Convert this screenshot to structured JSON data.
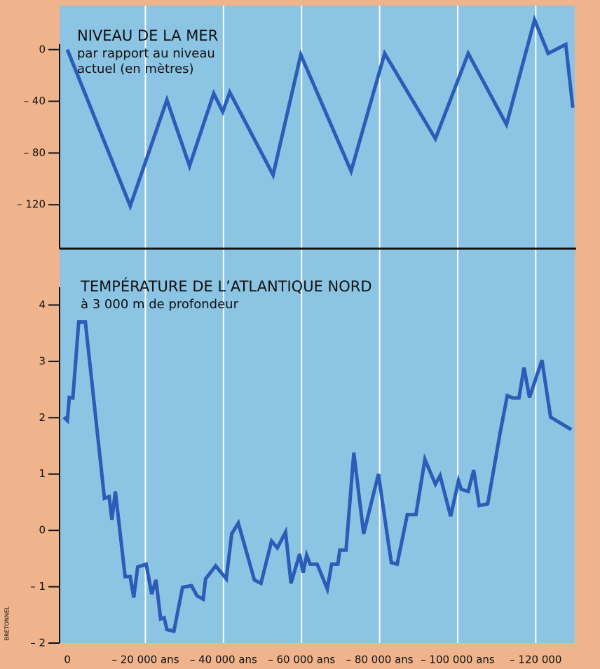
{
  "credit": "BRETONNEL",
  "chart_data": [
    {
      "type": "line",
      "title": "NIVEAU DE LA MER",
      "subtitle": [
        "par rapport au niveau",
        "actuel (en mètres)"
      ],
      "color": "#2b5cb8",
      "x": [
        0,
        -16100,
        -25500,
        -31300,
        -37500,
        -39800,
        -41600,
        -52700,
        -59800,
        -72700,
        -81300,
        -94300,
        -102700,
        -112500,
        -119700,
        -123200,
        -127700,
        -129500
      ],
      "values": [
        0,
        -121,
        -39,
        -90,
        -34,
        -48,
        -33,
        -97,
        -4,
        -94,
        -3,
        -69,
        -3,
        -58,
        23,
        -3,
        4,
        -45
      ],
      "xlim": [
        2000,
        -130000
      ],
      "ylim": [
        -154,
        34
      ],
      "yticks": [
        0,
        {
          "value": -40,
          "label": "– 40"
        },
        {
          "value": -80,
          "label": "– 80"
        },
        {
          "value": -120,
          "label": "– 120"
        }
      ]
    },
    {
      "type": "line",
      "title": "TEMPÉRATURE DE L’ATLANTIQUE NORD",
      "subtitle": [
        "à 3 000 m de profondeur"
      ],
      "color": "#2b5cb8",
      "x": [
        900,
        0,
        -500,
        -1400,
        -2900,
        -4600,
        -9500,
        -10700,
        -11400,
        -12300,
        -14800,
        -16100,
        -17000,
        -18000,
        -20200,
        -21600,
        -22700,
        -23900,
        -24800,
        -25500,
        -27300,
        -29500,
        -31800,
        -33200,
        -34800,
        -35400,
        -38000,
        -40700,
        -42100,
        -43800,
        -47900,
        -49600,
        -52300,
        -53800,
        -55900,
        -57300,
        -59500,
        -60400,
        -61300,
        -62200,
        -64000,
        -66600,
        -67700,
        -69300,
        -69800,
        -71400,
        -73400,
        -75900,
        -79700,
        -82300,
        -83000,
        -84500,
        -87100,
        -89300,
        -91600,
        -94300,
        -95500,
        -98200,
        -100200,
        -100900,
        -102700,
        -104100,
        -105500,
        -107700,
        -110900,
        -112700,
        -114100,
        -115700,
        -117000,
        -118400,
        -121600,
        -123800,
        -129100
      ],
      "values": [
        2.01,
        1.95,
        2.36,
        2.35,
        3.7,
        3.7,
        0.57,
        0.6,
        0.19,
        0.69,
        -0.82,
        -0.82,
        -1.19,
        -0.65,
        -0.6,
        -1.13,
        -0.88,
        -1.57,
        -1.55,
        -1.76,
        -1.79,
        -1.01,
        -0.98,
        -1.16,
        -1.22,
        -0.86,
        -0.63,
        -0.86,
        -0.06,
        0.13,
        -0.88,
        -0.94,
        -0.19,
        -0.31,
        -0.03,
        -0.94,
        -0.42,
        -0.75,
        -0.44,
        -0.6,
        -0.6,
        -1.04,
        -0.6,
        -0.6,
        -0.35,
        -0.35,
        1.38,
        -0.06,
        1.0,
        -0.25,
        -0.57,
        -0.6,
        0.28,
        0.28,
        1.26,
        0.82,
        0.97,
        0.25,
        0.88,
        0.73,
        0.69,
        1.07,
        0.44,
        0.47,
        1.74,
        2.39,
        2.35,
        2.35,
        2.89,
        2.36,
        3.02,
        2.01,
        1.79
      ],
      "xlim": [
        2000,
        -130000
      ],
      "ylim": [
        -2,
        5
      ],
      "xticks": [
        0,
        {
          "value": -20000,
          "label": "– 20 000 ans"
        },
        {
          "value": -40000,
          "label": "– 40 000 ans"
        },
        {
          "value": -60000,
          "label": "– 60 000 ans"
        },
        {
          "value": -80000,
          "label": "– 80 000 ans"
        },
        {
          "value": -100000,
          "label": "– 100 000 ans"
        },
        {
          "value": -120000,
          "label": "– 120 000"
        }
      ],
      "yticks": [
        4,
        3,
        2,
        1,
        0,
        {
          "value": -1,
          "label": "– 1"
        },
        {
          "value": -2,
          "label": "– 2"
        }
      ]
    }
  ]
}
